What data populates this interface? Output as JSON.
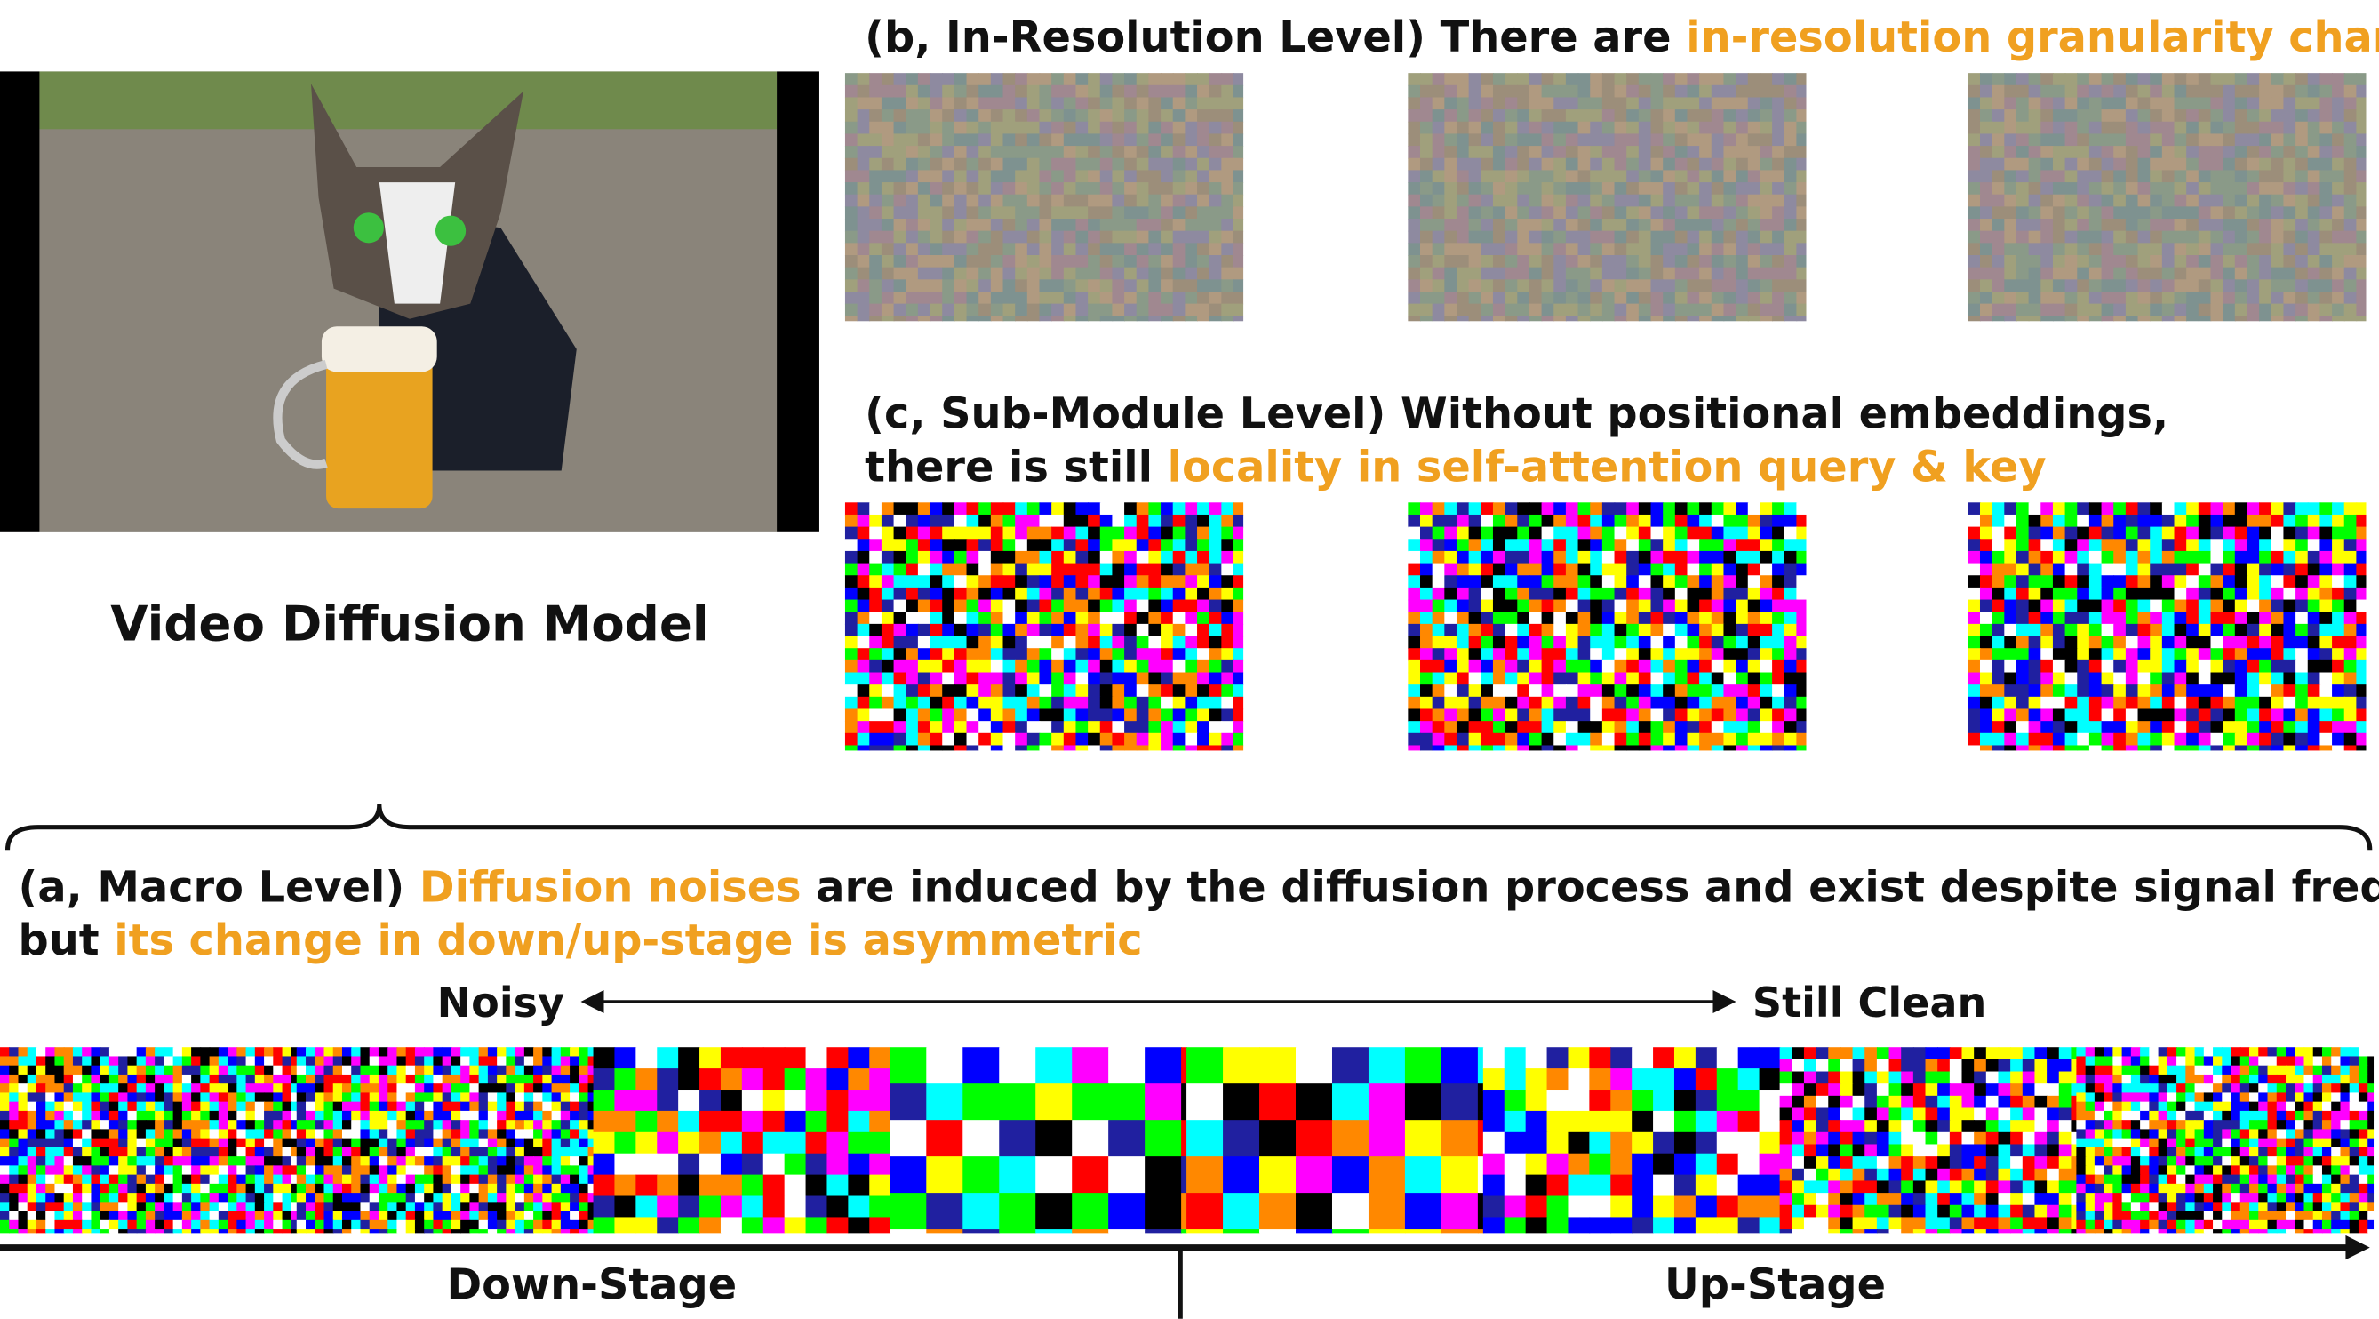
{
  "video_label": "Video Diffusion Model",
  "panel_b": {
    "prefix": "(b, In-Resolution Level) There are ",
    "highlight": "in-resolution granularity changes"
  },
  "panel_c": {
    "line1": "(c, Sub-Module Level) Without positional embeddings,",
    "prefix": "there is still ",
    "highlight": "locality in self-attention query & key"
  },
  "panel_a": {
    "label": "(a, Macro Level) ",
    "highlight1": "Diffusion noises",
    "rest1": " are induced by the diffusion process and exist despite signal frequency,",
    "prefix2": "but ",
    "highlight2": "its change in down/up-stage is asymmetric"
  },
  "arrow": {
    "left": "Noisy",
    "right": "Still Clean"
  },
  "stages": {
    "down": "Down-Stage",
    "up": "Up-Stage"
  }
}
